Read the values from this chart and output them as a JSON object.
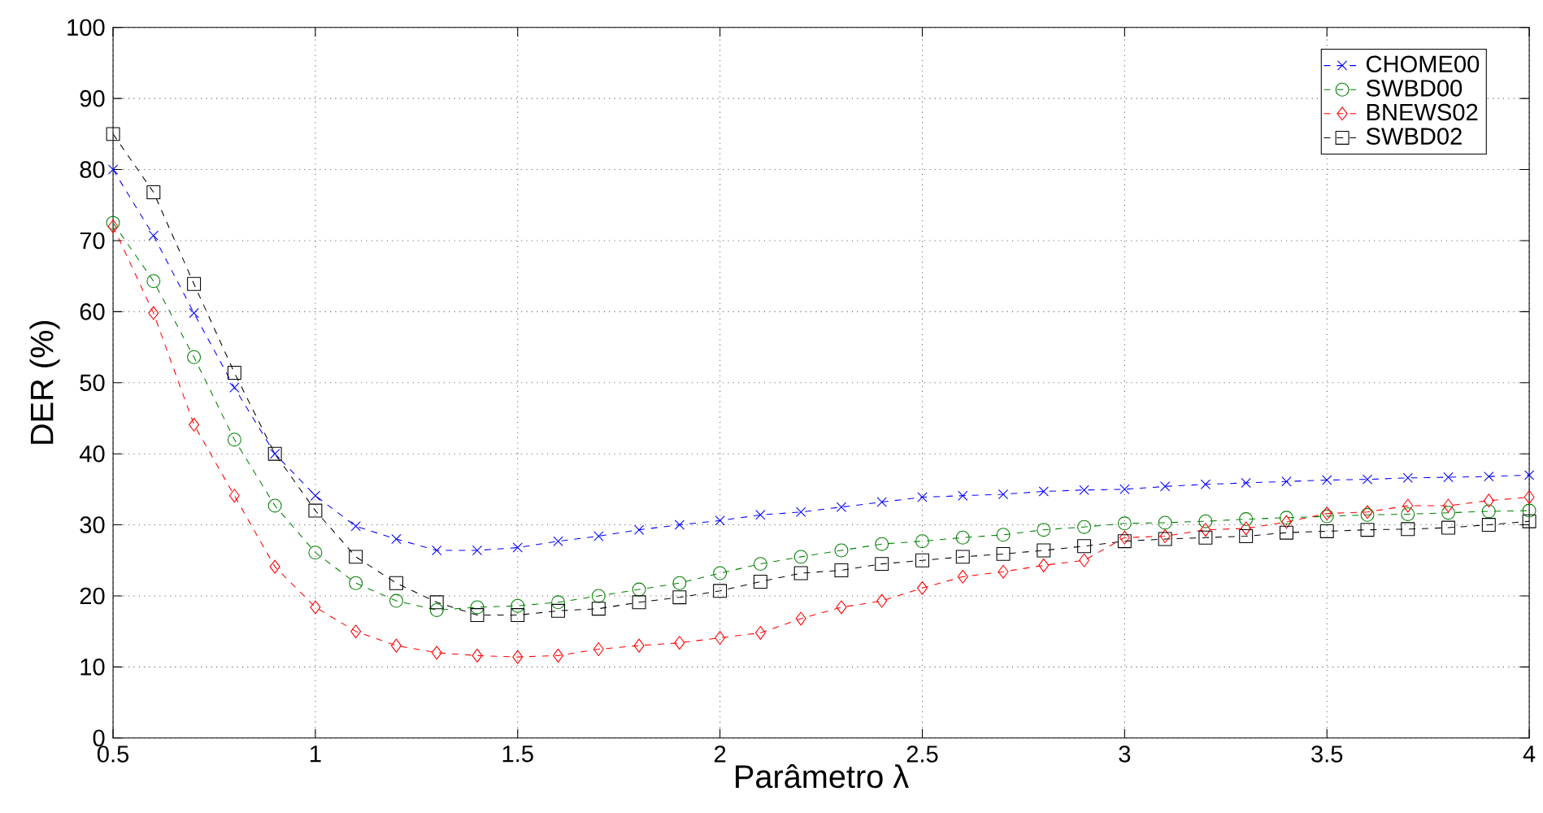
{
  "chart_data": {
    "type": "line",
    "xlabel": "Parâmetro  λ",
    "ylabel": "DER (%)",
    "x": [
      0.5,
      0.6,
      0.7,
      0.8,
      0.9,
      1.0,
      1.1,
      1.2,
      1.3,
      1.4,
      1.5,
      1.6,
      1.7,
      1.8,
      1.9,
      2.0,
      2.1,
      2.2,
      2.3,
      2.4,
      2.5,
      2.6,
      2.7,
      2.8,
      2.9,
      3.0,
      3.1,
      3.2,
      3.3,
      3.4,
      3.5,
      3.6,
      3.7,
      3.8,
      3.9,
      4.0
    ],
    "series": [
      {
        "name": "CHOME00",
        "color": "#0000ff",
        "marker": "cross",
        "values": [
          80,
          70.7,
          59.8,
          49.3,
          40,
          34.1,
          29.8,
          28,
          26.4,
          26.4,
          26.8,
          27.7,
          28.4,
          29.3,
          30,
          30.6,
          31.4,
          31.8,
          32.5,
          33.2,
          33.9,
          34.1,
          34.3,
          34.7,
          34.9,
          35.0,
          35.4,
          35.7,
          35.9,
          36.1,
          36.3,
          36.4,
          36.6,
          36.7,
          36.8,
          37.0
        ]
      },
      {
        "name": "SWBD00",
        "color": "#008000",
        "marker": "circle",
        "values": [
          72.5,
          64.3,
          53.6,
          42,
          32.7,
          26.1,
          21.8,
          19.3,
          18,
          18.4,
          18.6,
          19.1,
          20,
          20.9,
          21.8,
          23.2,
          24.5,
          25.5,
          26.4,
          27.3,
          27.7,
          28.2,
          28.6,
          29.3,
          29.7,
          30.2,
          30.3,
          30.5,
          30.8,
          31.0,
          31.2,
          31.4,
          31.5,
          31.7,
          31.9,
          32.0
        ]
      },
      {
        "name": "BNEWS02",
        "color": "#ff0000",
        "marker": "diamond",
        "values": [
          72,
          59.8,
          44.1,
          34.1,
          24.1,
          18.4,
          15,
          13,
          12,
          11.6,
          11.4,
          11.6,
          12.5,
          13,
          13.4,
          14.1,
          14.8,
          16.8,
          18.4,
          19.3,
          21.1,
          22.7,
          23.4,
          24.3,
          25.0,
          28.2,
          28.4,
          29.3,
          29.5,
          30.4,
          31.6,
          31.8,
          32.7,
          32.7,
          33.4,
          33.9
        ]
      },
      {
        "name": "SWBD02",
        "color": "#000000",
        "marker": "square",
        "values": [
          85,
          76.8,
          63.9,
          51.4,
          40,
          32,
          25.5,
          21.8,
          19.1,
          17.3,
          17.3,
          17.9,
          18.2,
          19.1,
          19.8,
          20.7,
          22.0,
          23.2,
          23.6,
          24.5,
          25,
          25.5,
          25.9,
          26.4,
          27,
          27.7,
          28,
          28.2,
          28.4,
          28.9,
          29.1,
          29.3,
          29.4,
          29.6,
          30,
          30.5
        ]
      }
    ],
    "xlim": [
      0.5,
      4
    ],
    "ylim": [
      0,
      100
    ],
    "xticks": [
      0.5,
      1,
      1.5,
      2,
      2.5,
      3,
      3.5,
      4
    ],
    "yticks": [
      0,
      10,
      20,
      30,
      40,
      50,
      60,
      70,
      80,
      90,
      100
    ],
    "grid": true,
    "legend": "top right",
    "line_style": "dashed"
  }
}
